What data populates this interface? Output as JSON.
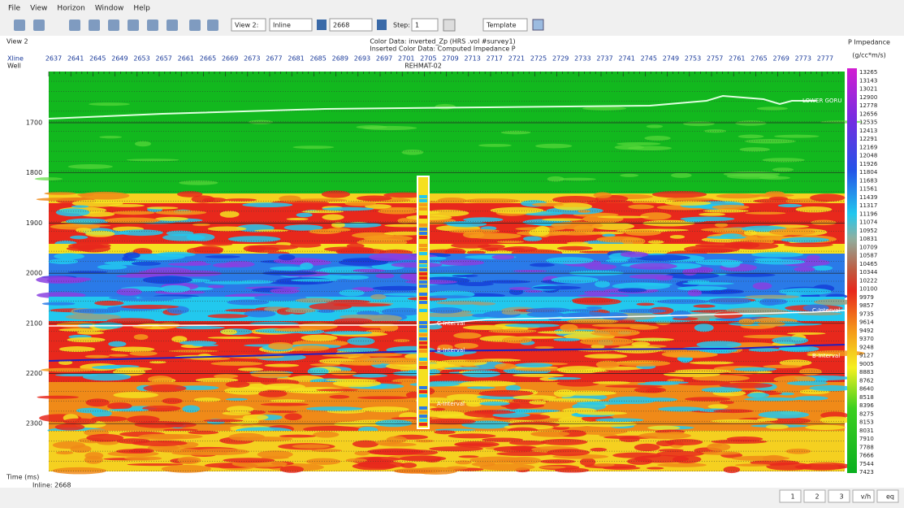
{
  "menu": [
    "File",
    "View",
    "Horizon",
    "Window",
    "Help"
  ],
  "toolbar": {
    "view_select": "View 2:",
    "direction": "Inline",
    "line_number": "2668",
    "step_label": "Step:",
    "step_value": "1",
    "template": "Template"
  },
  "view": {
    "name": "View 2",
    "header": [
      "Color Data: inverted_Zp (HRS .vol #survey1)",
      "Inserted Color Data: Computed Impedance P"
    ],
    "xline_label": "Xline",
    "well_label": "Well",
    "well_name": "REHMAT-02",
    "xlines": [
      "2637",
      "2641",
      "2645",
      "2649",
      "2653",
      "2657",
      "2661",
      "2665",
      "2669",
      "2673",
      "2677",
      "2681",
      "2685",
      "2689",
      "2693",
      "2697",
      "2701",
      "2705",
      "2709",
      "2713",
      "2717",
      "2721",
      "2725",
      "2729",
      "2733",
      "2737",
      "2741",
      "2745",
      "2749",
      "2753",
      "2757",
      "2761",
      "2765",
      "2769",
      "2773",
      "2777"
    ],
    "time_label": "Time (ms)",
    "time_ticks": [
      "1700",
      "1800",
      "1900",
      "2000",
      "2100",
      "2200",
      "2300"
    ],
    "horizons": [
      "LOWER GORU",
      "C-Interval",
      "B-Interval",
      "A-Interval"
    ],
    "footer": "Inline: 2668"
  },
  "colorbar": {
    "title": "P Impedance",
    "unit": "(g/cc*m/s)",
    "labels": [
      "13265",
      "13143",
      "13021",
      "12900",
      "12778",
      "12656",
      "12535",
      "12413",
      "12291",
      "12169",
      "12048",
      "11926",
      "11804",
      "11683",
      "11561",
      "11439",
      "11317",
      "11196",
      "11074",
      "10952",
      "10831",
      "10709",
      "10587",
      "10465",
      "10344",
      "10222",
      "10100",
      "9979",
      "9857",
      "9735",
      "9614",
      "9492",
      "9370",
      "9248",
      "9127",
      "9005",
      "8883",
      "8762",
      "8640",
      "8518",
      "8396",
      "8275",
      "8153",
      "8031",
      "7910",
      "7788",
      "7666",
      "7544",
      "7423"
    ]
  },
  "statusbar": [
    "1",
    "2",
    "3",
    "v/h",
    "eq"
  ]
}
